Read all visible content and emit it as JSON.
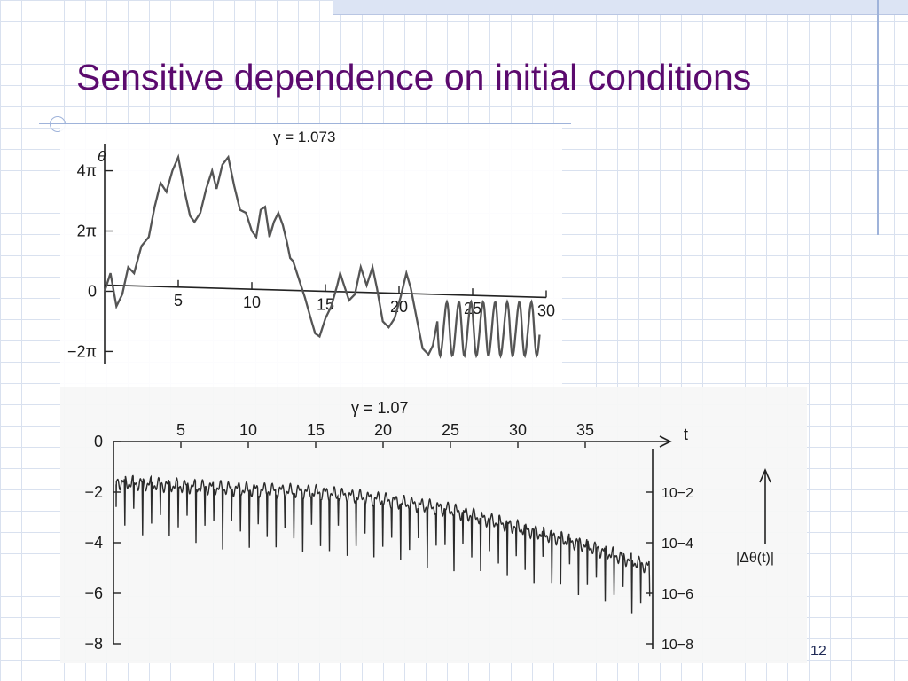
{
  "slide": {
    "title": "Sensitive dependence on initial conditions",
    "page_number": "12"
  },
  "colors": {
    "title": "#5b0a6e",
    "grid": "#d9e1ef",
    "curve": "#555555"
  },
  "chart_data": [
    {
      "type": "line",
      "title": "γ = 1.073",
      "ylabel": "θ",
      "xlabel": "",
      "xlim": [
        0,
        30
      ],
      "ylim": [
        -2.4,
        4.9
      ],
      "y_unit": "π",
      "x_ticks": [
        5,
        10,
        15,
        20,
        25,
        30
      ],
      "x_tick_labels": [
        "5",
        "10",
        "15",
        "20",
        "25",
        "30"
      ],
      "y_ticks": [
        4,
        2,
        0,
        -2
      ],
      "y_tick_labels": [
        "4π",
        "2π",
        "0",
        "−2π"
      ],
      "grid": false,
      "series": [
        {
          "points": [
            [
              0,
              0
            ],
            [
              0.4,
              0.6
            ],
            [
              0.8,
              -0.5
            ],
            [
              1.2,
              -0.1
            ],
            [
              1.6,
              0.8
            ],
            [
              2.0,
              0.6
            ],
            [
              2.5,
              1.5
            ],
            [
              3.0,
              1.8
            ],
            [
              3.4,
              2.8
            ],
            [
              3.8,
              3.6
            ],
            [
              4.2,
              3.3
            ],
            [
              4.6,
              4.0
            ],
            [
              5.0,
              4.45
            ],
            [
              5.4,
              3.4
            ],
            [
              5.8,
              2.5
            ],
            [
              6.1,
              2.3
            ],
            [
              6.5,
              2.6
            ],
            [
              6.9,
              3.4
            ],
            [
              7.3,
              4.0
            ],
            [
              7.6,
              3.4
            ],
            [
              8.0,
              4.2
            ],
            [
              8.4,
              4.45
            ],
            [
              8.8,
              3.5
            ],
            [
              9.2,
              2.7
            ],
            [
              9.6,
              2.6
            ],
            [
              10.0,
              2.0
            ],
            [
              10.3,
              1.8
            ],
            [
              10.6,
              2.7
            ],
            [
              10.9,
              2.8
            ],
            [
              11.2,
              1.8
            ],
            [
              11.5,
              2.3
            ],
            [
              11.8,
              2.6
            ],
            [
              12.1,
              2.2
            ],
            [
              12.4,
              1.6
            ],
            [
              12.6,
              1.1
            ],
            [
              12.8,
              1.0
            ],
            [
              13.2,
              0.4
            ],
            [
              13.6,
              -0.2
            ],
            [
              14.0,
              -0.9
            ],
            [
              14.3,
              -1.4
            ],
            [
              14.6,
              -1.5
            ],
            [
              15.0,
              -0.9
            ],
            [
              15.4,
              -0.5
            ],
            [
              15.8,
              0.2
            ],
            [
              16.0,
              0.6
            ],
            [
              16.2,
              0.3
            ],
            [
              16.6,
              -0.3
            ],
            [
              17.0,
              -0.1
            ],
            [
              17.4,
              0.8
            ],
            [
              17.8,
              0.2
            ],
            [
              18.2,
              0.8
            ],
            [
              18.5,
              0.1
            ],
            [
              18.9,
              -1.0
            ],
            [
              19.3,
              -1.2
            ],
            [
              19.7,
              -0.9
            ],
            [
              20.1,
              -0.2
            ],
            [
              20.5,
              0.6
            ],
            [
              20.8,
              0.1
            ],
            [
              21.2,
              -0.9
            ],
            [
              21.6,
              -1.9
            ],
            [
              22.0,
              -2.1
            ],
            [
              22.3,
              -1.8
            ],
            [
              22.6,
              -1.0
            ]
          ]
        }
      ]
    },
    {
      "type": "line",
      "title": "γ = 1.07",
      "xlabel": "t",
      "ylabel": "",
      "right_axis_label": "|Δθ(t)|",
      "xlim": [
        0,
        40
      ],
      "ylim": [
        -8,
        0
      ],
      "x_ticks": [
        5,
        10,
        15,
        20,
        25,
        30,
        35
      ],
      "x_tick_labels": [
        "5",
        "10",
        "15",
        "20",
        "25",
        "30",
        "35"
      ],
      "y_ticks": [
        0,
        -2,
        -4,
        -6,
        -8
      ],
      "y_tick_labels": [
        "0",
        "−2",
        "−4",
        "−6",
        "−8"
      ],
      "right_ticks": [
        -2,
        -4,
        -6,
        -8
      ],
      "right_tick_labels": [
        "10−2",
        "10−4",
        "10−6",
        "10−8"
      ],
      "grid": false,
      "series": [
        {
          "trend": [
            [
              0,
              -1.6
            ],
            [
              5,
              -1.75
            ],
            [
              10,
              -1.9
            ],
            [
              15,
              -2.0
            ],
            [
              20,
              -2.3
            ],
            [
              25,
              -2.7
            ],
            [
              30,
              -3.4
            ],
            [
              35,
              -4.1
            ],
            [
              40,
              -5.0
            ]
          ],
          "spike_period": 0.66,
          "spike_depth": 2.3
        }
      ]
    }
  ]
}
